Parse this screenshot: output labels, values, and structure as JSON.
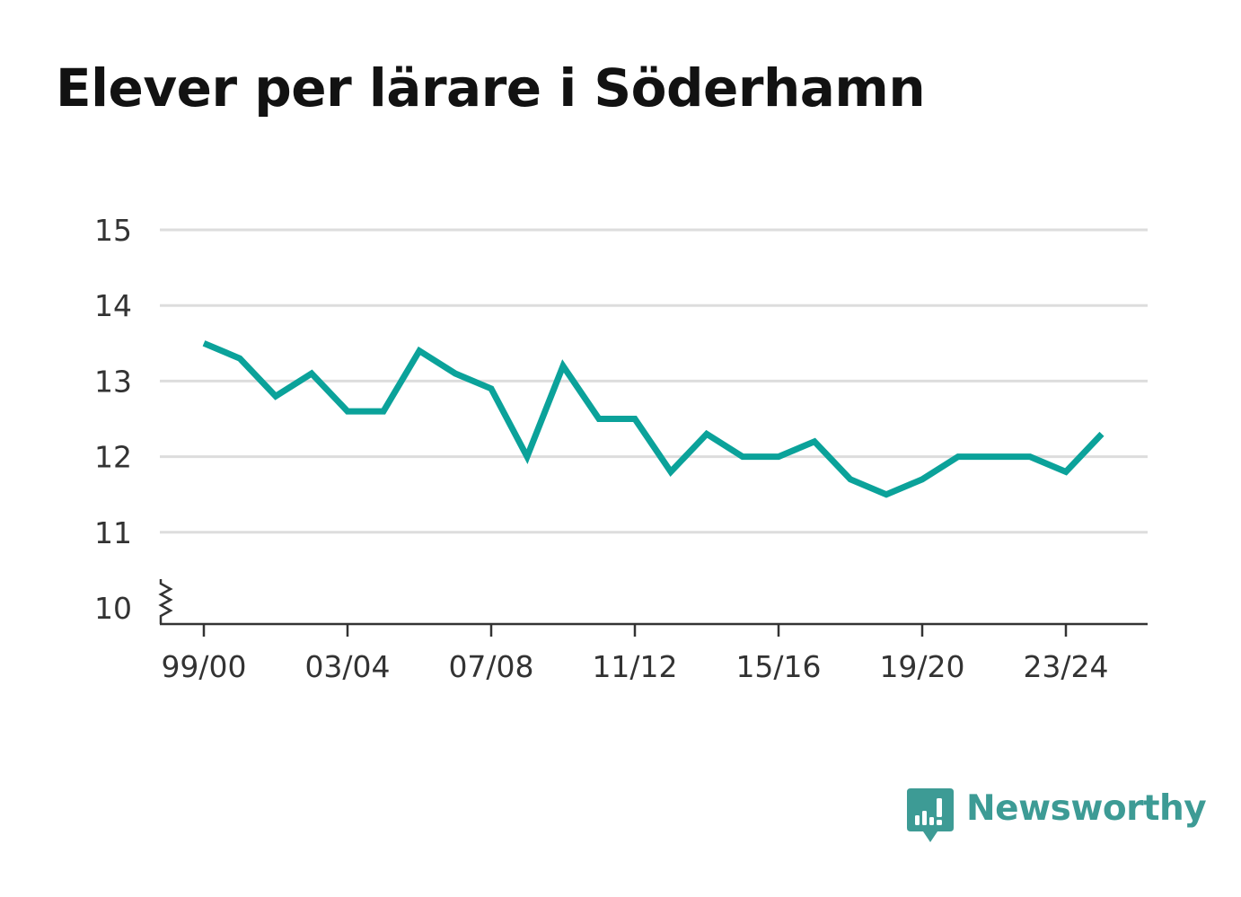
{
  "chart_data": {
    "type": "line",
    "title": "Elever per lärare i Söderhamn",
    "xlabel": "",
    "ylabel": "",
    "x": [
      "99/00",
      "00/01",
      "01/02",
      "02/03",
      "03/04",
      "04/05",
      "05/06",
      "06/07",
      "07/08",
      "08/09",
      "09/10",
      "10/11",
      "11/12",
      "12/13",
      "13/14",
      "14/15",
      "15/16",
      "16/17",
      "17/18",
      "18/19",
      "19/20",
      "20/21",
      "21/22",
      "22/23",
      "23/24",
      "24/25"
    ],
    "x_tick_labels": [
      "99/00",
      "03/04",
      "07/08",
      "11/12",
      "15/16",
      "19/20",
      "23/24"
    ],
    "y_tick_labels": [
      "10",
      "11",
      "12",
      "13",
      "14",
      "15"
    ],
    "series": [
      {
        "values": [
          13.5,
          13.3,
          12.8,
          13.1,
          12.6,
          12.6,
          13.4,
          13.1,
          12.9,
          12.0,
          13.2,
          12.5,
          12.5,
          11.8,
          12.3,
          12.0,
          12.0,
          12.2,
          11.7,
          11.5,
          11.7,
          12.0,
          12.0,
          12.0,
          11.8,
          12.3
        ],
        "color": "#0ba29a"
      }
    ],
    "ylim": [
      10,
      15
    ],
    "y_axis_break": true,
    "grid": "horizontal",
    "legend": "none"
  },
  "branding": {
    "name": "Newsworthy",
    "color": "#3d9b95"
  }
}
